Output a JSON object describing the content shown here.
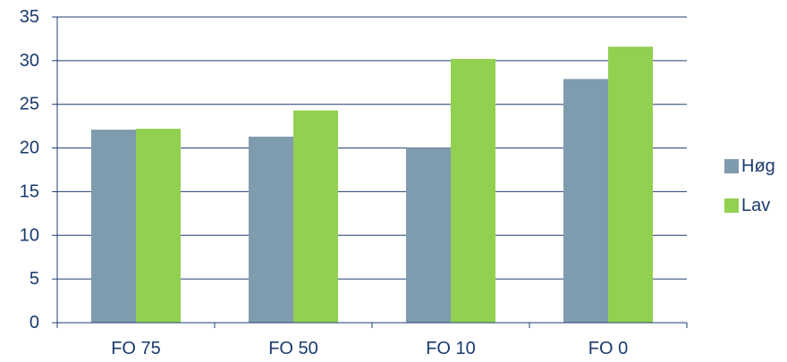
{
  "chart_data": {
    "type": "bar",
    "categories": [
      "FO 75",
      "FO 50",
      "FO 10",
      "FO 0"
    ],
    "series": [
      {
        "name": "Høg",
        "values": [
          22.1,
          21.3,
          20.0,
          27.9
        ],
        "color": "#7f9cae"
      },
      {
        "name": "Lav",
        "values": [
          22.2,
          24.3,
          30.2,
          31.6
        ],
        "color": "#92d050"
      }
    ],
    "ylim": [
      0,
      35
    ],
    "yticks": [
      0,
      5,
      10,
      15,
      20,
      25,
      30,
      35
    ],
    "grid": true,
    "legend": "right",
    "gridColor": "#1f3d70",
    "textColor": "#1a3a6e"
  }
}
